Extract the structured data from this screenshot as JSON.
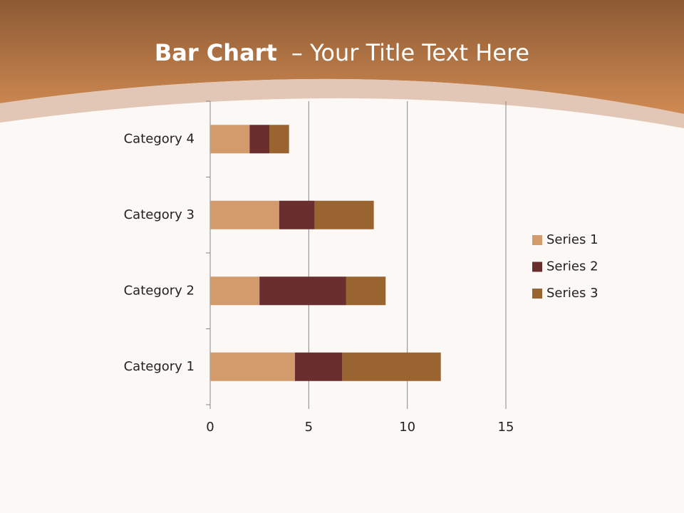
{
  "chart_data": {
    "type": "stacked-bar-horizontal",
    "title_parts": [
      "Bar Chart",
      "– Your Title Text Here"
    ],
    "categories": [
      "Category 1",
      "Category 2",
      "Category 3",
      "Category 4"
    ],
    "series": [
      {
        "name": "Series 1",
        "color": "#d39a6c",
        "values": [
          4.3,
          2.5,
          3.5,
          2
        ]
      },
      {
        "name": "Series 2",
        "color": "#6b2e2e",
        "values": [
          2.4,
          4.4,
          1.8,
          1
        ]
      },
      {
        "name": "Series 3",
        "color": "#9a6431",
        "values": [
          5,
          2,
          3,
          1
        ]
      }
    ],
    "xlim": [
      0,
      15
    ],
    "xticks": [
      0,
      5,
      10,
      15
    ],
    "grid": true,
    "legend": "right"
  }
}
